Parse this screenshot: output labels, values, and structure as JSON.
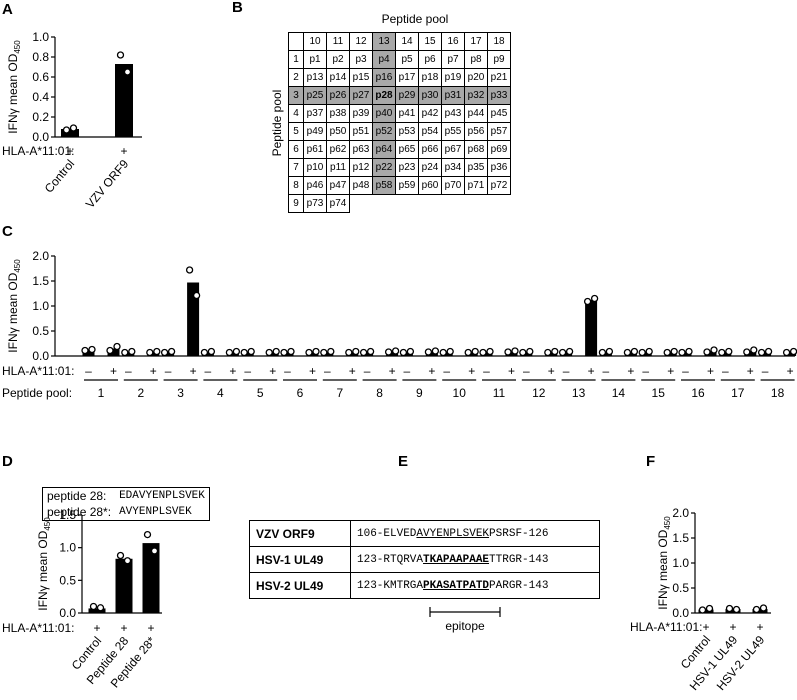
{
  "chart_data": [
    {
      "type": "bar",
      "label": "A",
      "ylabel": "IFNγ mean OD",
      "ylabel_sub": "450",
      "ylim": [
        0,
        1
      ],
      "yticks": [
        {
          "value": 0,
          "label": "0.0"
        },
        0.2,
        0.4,
        0.6,
        0.8,
        {
          "value": 1,
          "label": "1.0"
        }
      ],
      "categories": [
        "Control",
        "VZV ORF9"
      ],
      "values": [
        0.08,
        0.73
      ],
      "replicates": [
        [
          0.07,
          0.09
        ],
        [
          0.82,
          0.65
        ]
      ],
      "row_label": "HLA-A*11:01:",
      "signs": [
        "+",
        "+"
      ],
      "color": "#000000"
    },
    {
      "type": "grouped_bar",
      "label": "C",
      "ylabel": "IFNγ mean OD",
      "ylabel_sub": "450",
      "ylim": [
        0,
        2
      ],
      "yticks": [
        {
          "value": 0,
          "label": "0.0"
        },
        0.5,
        {
          "value": 1,
          "label": "1.0"
        },
        1.5,
        {
          "value": 2,
          "label": "2.0"
        }
      ],
      "groups": [
        "1",
        "2",
        "3",
        "4",
        "5",
        "6",
        "7",
        "8",
        "9",
        "10",
        "11",
        "12",
        "13",
        "14",
        "15",
        "16",
        "17",
        "18"
      ],
      "group_label": "Peptide pool:",
      "row_label": "HLA-A*11:01:",
      "signs": [
        "–",
        "+",
        "–",
        "+",
        "–",
        "+",
        "–",
        "+",
        "–",
        "+",
        "–",
        "+",
        "–",
        "+",
        "–",
        "+",
        "–",
        "+",
        "–",
        "+",
        "–",
        "+",
        "–",
        "+",
        "–",
        "+",
        "–",
        "+",
        "–",
        "+",
        "–",
        "+",
        "–",
        "+",
        "–",
        "+"
      ],
      "values": [
        0.12,
        0.15,
        0.08,
        0.08,
        0.08,
        1.47,
        0.08,
        0.08,
        0.08,
        0.08,
        0.08,
        0.08,
        0.08,
        0.08,
        0.08,
        0.09,
        0.08,
        0.09,
        0.08,
        0.08,
        0.08,
        0.09,
        0.08,
        0.08,
        0.08,
        1.12,
        0.08,
        0.08,
        0.08,
        0.08,
        0.08,
        0.1,
        0.08,
        0.1,
        0.08,
        0.08
      ],
      "replicates": [
        [
          0.11,
          0.13
        ],
        [
          0.11,
          0.19
        ],
        [
          0.07,
          0.09
        ],
        [
          0.07,
          0.09
        ],
        [
          0.07,
          0.09
        ],
        [
          1.72,
          1.21
        ],
        [
          0.07,
          0.09
        ],
        [
          0.07,
          0.09
        ],
        [
          0.07,
          0.09
        ],
        [
          0.07,
          0.09
        ],
        [
          0.07,
          0.09
        ],
        [
          0.07,
          0.09
        ],
        [
          0.07,
          0.09
        ],
        [
          0.07,
          0.09
        ],
        [
          0.07,
          0.09
        ],
        [
          0.08,
          0.1
        ],
        [
          0.07,
          0.09
        ],
        [
          0.08,
          0.1
        ],
        [
          0.07,
          0.09
        ],
        [
          0.07,
          0.09
        ],
        [
          0.07,
          0.09
        ],
        [
          0.08,
          0.1
        ],
        [
          0.07,
          0.09
        ],
        [
          0.07,
          0.09
        ],
        [
          0.07,
          0.09
        ],
        [
          1.09,
          1.15
        ],
        [
          0.07,
          0.09
        ],
        [
          0.07,
          0.09
        ],
        [
          0.07,
          0.09
        ],
        [
          0.07,
          0.09
        ],
        [
          0.07,
          0.09
        ],
        [
          0.08,
          0.12
        ],
        [
          0.07,
          0.09
        ],
        [
          0.08,
          0.12
        ],
        [
          0.07,
          0.09
        ],
        [
          0.07,
          0.09
        ]
      ],
      "color": "#000000"
    },
    {
      "type": "bar",
      "label": "D",
      "ylabel": "IFNγ mean OD",
      "ylabel_sub": "450",
      "ylim": [
        0,
        1.5
      ],
      "yticks": [
        {
          "value": 0,
          "label": "0.0"
        },
        0.5,
        {
          "value": 1,
          "label": "1.0"
        },
        1.5
      ],
      "categories": [
        "Control",
        "Peptide 28",
        "Peptide 28*"
      ],
      "values": [
        0.07,
        0.83,
        1.07
      ],
      "replicates": [
        [
          0.1,
          0.08
        ],
        [
          0.88,
          0.8
        ],
        [
          1.2,
          0.95
        ]
      ],
      "row_label": "HLA-A*11:01:",
      "signs": [
        "+",
        "+",
        "+"
      ],
      "color": "#000000"
    },
    {
      "type": "bar",
      "label": "F",
      "ylabel": "IFNγ mean OD",
      "ylabel_sub": "450",
      "ylim": [
        0,
        2
      ],
      "yticks": [
        {
          "value": 0,
          "label": "0.0"
        },
        0.5,
        {
          "value": 1,
          "label": "1.0"
        },
        1.5,
        {
          "value": 2,
          "label": "2.0"
        }
      ],
      "categories": [
        "Control",
        "HSV-1 UL49",
        "HSV-2 UL49"
      ],
      "values": [
        0.07,
        0.08,
        0.08
      ],
      "replicates": [
        [
          0.06,
          0.09
        ],
        [
          0.09,
          0.07
        ],
        [
          0.07,
          0.1
        ]
      ],
      "row_label": "HLA-A*11:01:",
      "signs": [
        "+",
        "+",
        "+"
      ],
      "color": "#000000"
    }
  ],
  "pool_table": {
    "label": "B",
    "title": "Peptide pool",
    "side_title": "Peptide pool",
    "columns": [
      "10",
      "11",
      "12",
      "13",
      "14",
      "15",
      "16",
      "17",
      "18"
    ],
    "rows": [
      {
        "header": "1",
        "cells": [
          "p1",
          "p2",
          "p3",
          "p4",
          "p5",
          "p6",
          "p7",
          "p8",
          "p9"
        ]
      },
      {
        "header": "2",
        "cells": [
          "p13",
          "p14",
          "p15",
          "p16",
          "p17",
          "p18",
          "p19",
          "p20",
          "p21"
        ]
      },
      {
        "header": "3",
        "cells": [
          "p25",
          "p26",
          "p27",
          "p28",
          "p29",
          "p30",
          "p31",
          "p32",
          "p33"
        ]
      },
      {
        "header": "4",
        "cells": [
          "p37",
          "p38",
          "p39",
          "p40",
          "p41",
          "p42",
          "p43",
          "p44",
          "p45"
        ]
      },
      {
        "header": "5",
        "cells": [
          "p49",
          "p50",
          "p51",
          "p52",
          "p53",
          "p54",
          "p55",
          "p56",
          "p57"
        ]
      },
      {
        "header": "6",
        "cells": [
          "p61",
          "p62",
          "p63",
          "p64",
          "p65",
          "p66",
          "p67",
          "p68",
          "p69"
        ]
      },
      {
        "header": "7",
        "cells": [
          "p10",
          "p11",
          "p12",
          "p22",
          "p23",
          "p24",
          "p34",
          "p35",
          "p36"
        ]
      },
      {
        "header": "8",
        "cells": [
          "p46",
          "p47",
          "p48",
          "p58",
          "p59",
          "p60",
          "p70",
          "p71",
          "p72"
        ]
      },
      {
        "header": "9",
        "cells": [
          "p73",
          "p74"
        ]
      }
    ],
    "highlight": {
      "row": "3",
      "column": "13"
    }
  },
  "peptide_box": {
    "rows": [
      {
        "name": "peptide 28:",
        "sequence": "EDAVYENPLSVEK"
      },
      {
        "name": "peptide 28*:",
        "sequence": "AVYENPLSVEK"
      }
    ]
  },
  "alignment": {
    "label": "E",
    "caption": "epitope",
    "rows": [
      {
        "name": "VZV ORF9",
        "before": "106-ELVED",
        "epitope": "AVYENPLSVEK",
        "after": "PSRSF-126",
        "bold": false
      },
      {
        "name": "HSV-1 UL49",
        "before": "123-RTQRVA",
        "epitope": "TKAPAAPAAE",
        "after": "TTRGR-143",
        "bold": true
      },
      {
        "name": "HSV-2 UL49",
        "before": "123-KMTRGA",
        "epitope": "PKASATPATD",
        "after": "PARGR-143",
        "bold": true
      }
    ]
  }
}
